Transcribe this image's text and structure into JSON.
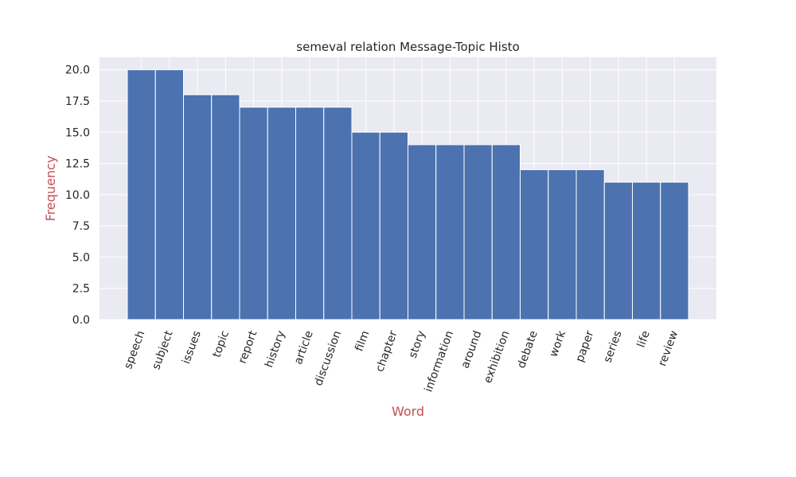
{
  "colors": {
    "background": "#ffffff",
    "plot_background": "#eaeaf2",
    "grid": "#ffffff",
    "bar": "#4c72b0",
    "axis_label": "#c44e52",
    "text": "#262626"
  },
  "chart_data": {
    "type": "bar",
    "title": "semeval relation Message-Topic Histo",
    "xlabel": "Word",
    "ylabel": "Frequency",
    "categories": [
      "speech",
      "subject",
      "issues",
      "topic",
      "report",
      "history",
      "article",
      "discussion",
      "film",
      "chapter",
      "story",
      "information",
      "around",
      "exhibition",
      "debate",
      "work",
      "paper",
      "series",
      "life",
      "review"
    ],
    "values": [
      20,
      20,
      18,
      18,
      17,
      17,
      17,
      17,
      15,
      15,
      14,
      14,
      14,
      14,
      12,
      12,
      12,
      11,
      11,
      11
    ],
    "ylim": [
      0,
      21
    ],
    "yticks": [
      "0.0",
      "2.5",
      "5.0",
      "7.5",
      "10.0",
      "12.5",
      "15.0",
      "17.5",
      "20.0"
    ],
    "grid": true,
    "x_tick_rotation": "70 degrees"
  }
}
